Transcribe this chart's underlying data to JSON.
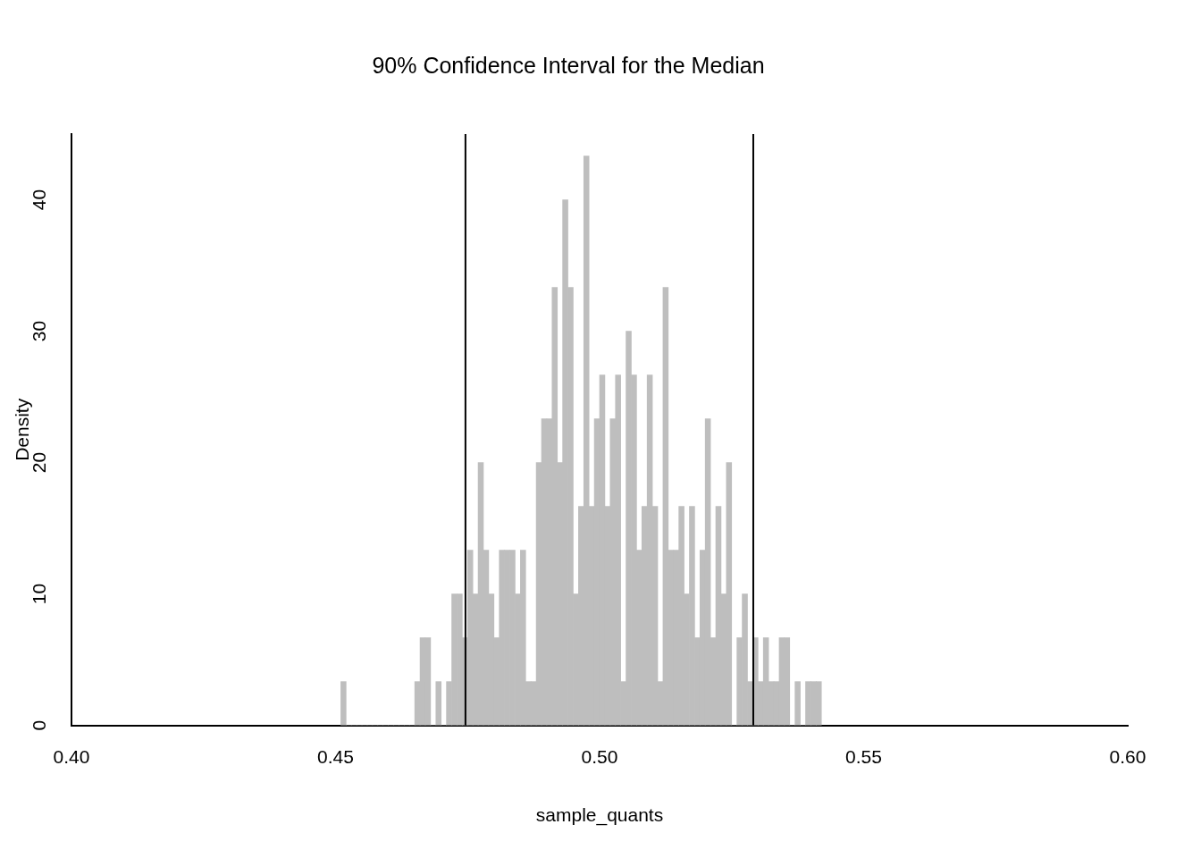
{
  "chart_data": {
    "type": "histogram",
    "title": "90% Confidence Interval for the Median",
    "xlabel": "sample_quants",
    "ylabel": "Density",
    "bins": [
      0.451,
      0.452,
      0.453,
      0.454,
      0.455,
      0.456,
      0.457,
      0.458,
      0.459,
      0.46,
      0.461,
      0.462,
      0.463,
      0.464,
      0.465,
      0.466,
      0.467,
      0.468,
      0.469,
      0.47,
      0.471,
      0.472,
      0.473,
      0.474,
      0.475,
      0.476,
      0.477,
      0.478,
      0.479,
      0.48,
      0.481,
      0.482,
      0.483,
      0.484,
      0.485,
      0.486,
      0.487,
      0.488,
      0.489,
      0.49,
      0.491,
      0.492,
      0.493,
      0.494,
      0.495,
      0.496,
      0.497,
      0.498,
      0.499,
      0.5,
      0.501,
      0.502,
      0.503,
      0.504,
      0.505,
      0.506,
      0.507,
      0.508,
      0.509,
      0.51,
      0.511,
      0.512,
      0.513,
      0.514,
      0.515,
      0.516,
      0.517,
      0.518,
      0.519,
      0.52,
      0.521,
      0.522,
      0.523,
      0.524,
      0.525,
      0.526,
      0.527,
      0.528,
      0.529,
      0.53,
      0.531,
      0.532,
      0.533,
      0.534,
      0.535,
      0.536,
      0.537,
      0.538,
      0.539,
      0.54,
      0.541,
      0.542
    ],
    "values": [
      3.33,
      0,
      0,
      0,
      0,
      0,
      0,
      0,
      0,
      0,
      0,
      0,
      0,
      0,
      3.33,
      6.67,
      6.67,
      0,
      3.33,
      0,
      3.33,
      10,
      10,
      6.67,
      13.33,
      10,
      20,
      13.33,
      10,
      6.67,
      13.33,
      13.33,
      13.33,
      10,
      13.33,
      3.33,
      3.33,
      20,
      23.33,
      23.33,
      33.33,
      20,
      40,
      33.33,
      10,
      16.67,
      43.33,
      16.67,
      23.33,
      26.67,
      16.67,
      23.33,
      26.67,
      3.33,
      30,
      26.67,
      13.33,
      16.67,
      26.67,
      16.67,
      3.33,
      33.33,
      13.33,
      13.33,
      16.67,
      10,
      16.67,
      6.67,
      13.33,
      23.33,
      6.67,
      16.67,
      10,
      20,
      0,
      6.67,
      10,
      3.33,
      6.67,
      3.33,
      6.67,
      3.33,
      3.33,
      6.67,
      6.67,
      0,
      3.33,
      0,
      3.33,
      3.33,
      3.33
    ],
    "color": "#bebebe",
    "xlim": [
      0.4,
      0.6
    ],
    "xticks": [
      {
        "value": 0.4,
        "label": "0.40"
      },
      {
        "value": 0.45,
        "label": "0.45"
      },
      {
        "value": 0.5,
        "label": "0.50"
      },
      {
        "value": 0.55,
        "label": "0.55"
      },
      {
        "value": 0.6,
        "label": "0.60"
      }
    ],
    "ylim": [
      0,
      45
    ],
    "yticks": [
      0,
      10,
      20,
      30,
      40
    ],
    "ref_lines": [
      {
        "axis": "x",
        "value": 0.4746,
        "color": "#000000"
      },
      {
        "axis": "x",
        "value": 0.5291,
        "color": "#000000"
      }
    ],
    "grid": false,
    "legend": false
  }
}
